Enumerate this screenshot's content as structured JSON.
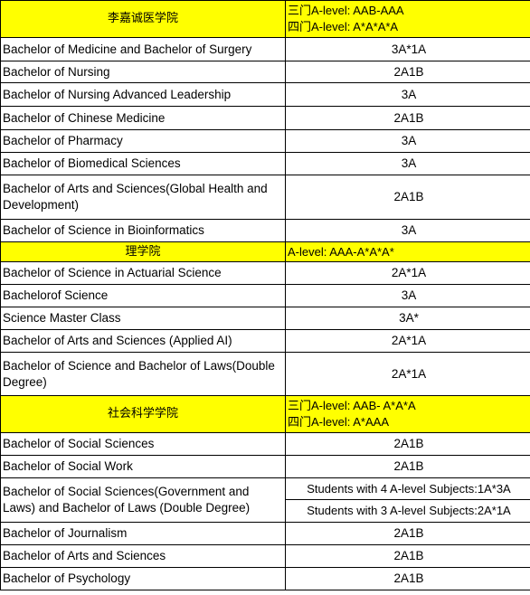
{
  "sections": [
    {
      "faculty": "李嘉诚医学院",
      "req_lines": [
        "三门A-level:  AAB-AAA",
        "四门A-level:  A*A*A*A"
      ],
      "programs": [
        {
          "name": "Bachelor of Medicine and Bachelor of Surgery",
          "req": "3A*1A"
        },
        {
          "name": "Bachelor of Nursing",
          "req": "2A1B"
        },
        {
          "name": "Bachelor of Nursing Advanced Leadership",
          "req": "3A"
        },
        {
          "name": "Bachelor of Chinese Medicine",
          "req": "2A1B"
        },
        {
          "name": "Bachelor of Pharmacy",
          "req": "3A"
        },
        {
          "name": "Bachelor of Biomedical Sciences",
          "req": "3A"
        },
        {
          "name": "Bachelor of Arts and Sciences(Global Health and Development)",
          "req": "2A1B"
        },
        {
          "name": "Bachelor of Science in Bioinformatics",
          "req": "3A"
        }
      ]
    },
    {
      "faculty": "理学院",
      "req_lines": [
        "A-level:  AAA-A*A*A*"
      ],
      "programs": [
        {
          "name": "Bachelor of Science in Actuarial Science",
          "req": "2A*1A"
        },
        {
          "name": "Bachelorof Science",
          "req": "3A"
        },
        {
          "name": "Science Master Class",
          "req": "3A*"
        },
        {
          "name": "Bachelor of Arts and Sciences (Applied AI)",
          "req": "2A*1A"
        },
        {
          "name": "Bachelor of Science and Bachelor of Laws(Double Degree)",
          "req": "2A*1A"
        }
      ]
    },
    {
      "faculty": "社会科学学院",
      "req_lines": [
        "三门A-level:  AAB- A*A*A",
        "四门A-level:  A*AAA"
      ],
      "programs": [
        {
          "name": "Bachelor of Social Sciences",
          "req": "2A1B"
        },
        {
          "name": "Bachelor of Social Work",
          "req": "2A1B"
        },
        {
          "name": "Bachelor of Social Sciences(Government and Laws) and Bachelor of Laws (Double Degree)",
          "req_split": [
            "Students with 4 A-level Subjects:1A*3A",
            "Students with 3 A-level Subjects:2A*1A"
          ]
        },
        {
          "name": "Bachelor of Journalism",
          "req": "2A1B"
        },
        {
          "name": "Bachelor of Arts and Sciences",
          "req": "2A1B"
        },
        {
          "name": "Bachelor of Psychology",
          "req": "2A1B"
        }
      ]
    }
  ],
  "colors": {
    "header_bg": "#ffff00",
    "border": "#000000"
  }
}
